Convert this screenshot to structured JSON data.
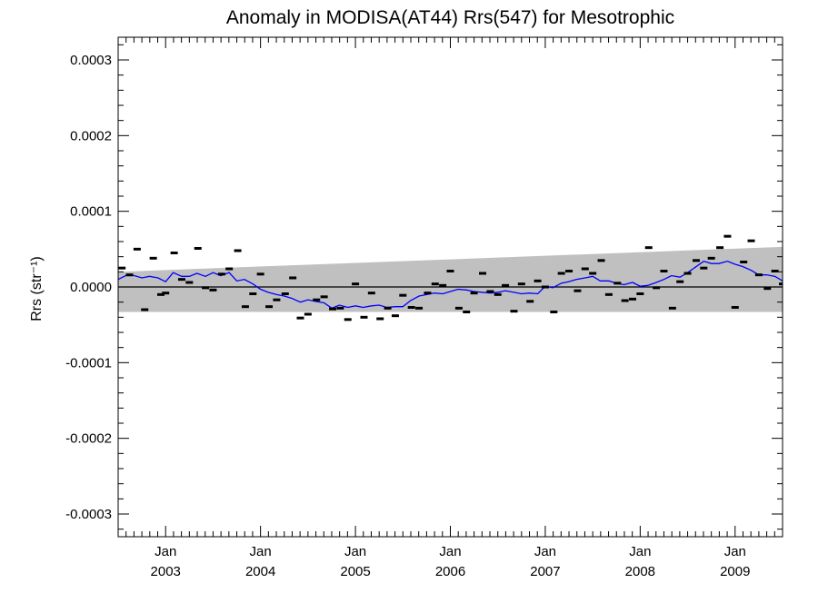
{
  "chart_data": {
    "type": "line",
    "title": "Anomaly in MODISA(AT44) Rrs(547) for Mesotrophic",
    "xlabel": "",
    "ylabel": "Rrs (str⁻¹)",
    "ylim": [
      -0.00033,
      0.00033
    ],
    "xlim": [
      2002.5,
      2009.5
    ],
    "y_ticks": [
      -0.0003,
      -0.0002,
      -0.0001,
      0.0,
      0.0001,
      0.0002,
      0.0003
    ],
    "y_tick_labels": [
      "-0.0003",
      "-0.0002",
      "-0.0001",
      "0.0000",
      "0.0001",
      "0.0002",
      "0.0003"
    ],
    "x_ticks": [
      {
        "x": 2003.0,
        "month": "Jan",
        "year": "2003"
      },
      {
        "x": 2004.0,
        "month": "Jan",
        "year": "2004"
      },
      {
        "x": 2005.0,
        "month": "Jan",
        "year": "2005"
      },
      {
        "x": 2006.0,
        "month": "Jan",
        "year": "2006"
      },
      {
        "x": 2007.0,
        "month": "Jan",
        "year": "2007"
      },
      {
        "x": 2008.0,
        "month": "Jan",
        "year": "2008"
      },
      {
        "x": 2009.0,
        "month": "Jan",
        "year": "2009"
      }
    ],
    "zero_line": 0.0,
    "band": {
      "color": "#c0c0c0",
      "x": [
        2002.5,
        2009.5
      ],
      "upper": [
        2e-05,
        5.3e-05
      ],
      "lower": [
        -3.3e-05,
        -3.3e-05
      ]
    },
    "series": [
      {
        "style": "markers",
        "marker": "dash",
        "color": "#000000",
        "points": [
          [
            2002.54,
            2.5e-05
          ],
          [
            2002.62,
            1.6e-05
          ],
          [
            2002.7,
            5e-05
          ],
          [
            2002.78,
            -3e-05
          ],
          [
            2002.87,
            3.8e-05
          ],
          [
            2002.95,
            -1e-05
          ],
          [
            2003.0,
            -8e-06
          ],
          [
            2003.09,
            4.5e-05
          ],
          [
            2003.17,
            1e-05
          ],
          [
            2003.25,
            6e-06
          ],
          [
            2003.34,
            5.1e-05
          ],
          [
            2003.42,
            -1e-06
          ],
          [
            2003.5,
            -4e-06
          ],
          [
            2003.59,
            1.7e-05
          ],
          [
            2003.67,
            2.4e-05
          ],
          [
            2003.76,
            4.8e-05
          ],
          [
            2003.84,
            -2.6e-05
          ],
          [
            2003.92,
            -9e-06
          ],
          [
            2004.0,
            1.7e-05
          ],
          [
            2004.09,
            -2.6e-05
          ],
          [
            2004.17,
            -1.7e-05
          ],
          [
            2004.26,
            -9e-06
          ],
          [
            2004.34,
            1.2e-05
          ],
          [
            2004.42,
            -4.1e-05
          ],
          [
            2004.5,
            -3.6e-05
          ],
          [
            2004.59,
            -1.7e-05
          ],
          [
            2004.67,
            -1.3e-05
          ],
          [
            2004.76,
            -2.9e-05
          ],
          [
            2004.84,
            -2.8e-05
          ],
          [
            2004.92,
            -4.3e-05
          ],
          [
            2005.0,
            4e-06
          ],
          [
            2005.09,
            -4e-05
          ],
          [
            2005.17,
            -8e-06
          ],
          [
            2005.26,
            -4.2e-05
          ],
          [
            2005.34,
            -2.8e-05
          ],
          [
            2005.42,
            -3.8e-05
          ],
          [
            2005.5,
            -1.1e-05
          ],
          [
            2005.59,
            -2.7e-05
          ],
          [
            2005.67,
            -2.8e-05
          ],
          [
            2005.76,
            -8e-06
          ],
          [
            2005.84,
            4e-06
          ],
          [
            2005.92,
            2e-06
          ],
          [
            2006.0,
            2.1e-05
          ],
          [
            2006.09,
            -2.8e-05
          ],
          [
            2006.17,
            -3.3e-05
          ],
          [
            2006.25,
            -8e-06
          ],
          [
            2006.34,
            1.8e-05
          ],
          [
            2006.42,
            -6e-06
          ],
          [
            2006.5,
            -1e-05
          ],
          [
            2006.58,
            2e-06
          ],
          [
            2006.67,
            -3.2e-05
          ],
          [
            2006.75,
            4e-06
          ],
          [
            2006.84,
            -1.9e-05
          ],
          [
            2006.92,
            8e-06
          ],
          [
            2007.0,
            0.0
          ],
          [
            2007.09,
            -3.3e-05
          ],
          [
            2007.17,
            1.8e-05
          ],
          [
            2007.25,
            2.1e-05
          ],
          [
            2007.34,
            -5e-06
          ],
          [
            2007.42,
            2.4e-05
          ],
          [
            2007.5,
            1.8e-05
          ],
          [
            2007.59,
            3.5e-05
          ],
          [
            2007.67,
            -1e-05
          ],
          [
            2007.76,
            5e-06
          ],
          [
            2007.84,
            -1.8e-05
          ],
          [
            2007.92,
            -1.6e-05
          ],
          [
            2008.0,
            -9e-06
          ],
          [
            2008.09,
            5.2e-05
          ],
          [
            2008.17,
            -1e-06
          ],
          [
            2008.25,
            2.1e-05
          ],
          [
            2008.34,
            -2.8e-05
          ],
          [
            2008.42,
            7e-06
          ],
          [
            2008.5,
            1.8e-05
          ],
          [
            2008.59,
            3.5e-05
          ],
          [
            2008.67,
            2.5e-05
          ],
          [
            2008.75,
            3.8e-05
          ],
          [
            2008.84,
            5.2e-05
          ],
          [
            2008.92,
            6.7e-05
          ],
          [
            2009.0,
            -2.7e-05
          ],
          [
            2009.09,
            3.3e-05
          ],
          [
            2009.17,
            6.1e-05
          ],
          [
            2009.25,
            1.6e-05
          ],
          [
            2009.34,
            -2e-06
          ],
          [
            2009.42,
            2.1e-05
          ],
          [
            2009.5,
            4e-06
          ]
        ]
      },
      {
        "style": "line",
        "color": "#0000ff",
        "points": [
          [
            2002.5,
            1e-05
          ],
          [
            2002.58,
            1.5e-05
          ],
          [
            2002.67,
            1.5e-05
          ],
          [
            2002.75,
            1.2e-05
          ],
          [
            2002.83,
            1.4e-05
          ],
          [
            2002.92,
            1.2e-05
          ],
          [
            2003.0,
            7e-06
          ],
          [
            2003.08,
            1.9e-05
          ],
          [
            2003.17,
            1.4e-05
          ],
          [
            2003.25,
            1.4e-05
          ],
          [
            2003.33,
            1.8e-05
          ],
          [
            2003.42,
            1.4e-05
          ],
          [
            2003.5,
            1.9e-05
          ],
          [
            2003.58,
            1.5e-05
          ],
          [
            2003.67,
            1.9e-05
          ],
          [
            2003.75,
            8e-06
          ],
          [
            2003.83,
            1e-05
          ],
          [
            2003.92,
            4e-06
          ],
          [
            2004.0,
            -3e-06
          ],
          [
            2004.08,
            -7e-06
          ],
          [
            2004.17,
            -1e-05
          ],
          [
            2004.25,
            -1.2e-05
          ],
          [
            2004.33,
            -1.5e-05
          ],
          [
            2004.42,
            -2e-05
          ],
          [
            2004.5,
            -1.7e-05
          ],
          [
            2004.58,
            -1.9e-05
          ],
          [
            2004.67,
            -2.1e-05
          ],
          [
            2004.75,
            -2.8e-05
          ],
          [
            2004.83,
            -2.4e-05
          ],
          [
            2004.92,
            -2.7e-05
          ],
          [
            2005.0,
            -2.5e-05
          ],
          [
            2005.08,
            -2.7e-05
          ],
          [
            2005.17,
            -2.5e-05
          ],
          [
            2005.25,
            -2.4e-05
          ],
          [
            2005.33,
            -2.7e-05
          ],
          [
            2005.42,
            -2.6e-05
          ],
          [
            2005.5,
            -2.6e-05
          ],
          [
            2005.58,
            -1.8e-05
          ],
          [
            2005.67,
            -1.2e-05
          ],
          [
            2005.75,
            -1e-05
          ],
          [
            2005.83,
            -8e-06
          ],
          [
            2005.92,
            -9e-06
          ],
          [
            2006.0,
            -6e-06
          ],
          [
            2006.08,
            -3e-06
          ],
          [
            2006.17,
            -4e-06
          ],
          [
            2006.25,
            -6e-06
          ],
          [
            2006.33,
            -7e-06
          ],
          [
            2006.42,
            -8e-06
          ],
          [
            2006.5,
            -7e-06
          ],
          [
            2006.58,
            -5e-06
          ],
          [
            2006.67,
            -7e-06
          ],
          [
            2006.75,
            -9e-06
          ],
          [
            2006.83,
            -8e-06
          ],
          [
            2006.92,
            -9e-06
          ],
          [
            2007.0,
            1e-06
          ],
          [
            2007.08,
            -1e-06
          ],
          [
            2007.17,
            5e-06
          ],
          [
            2007.25,
            7e-06
          ],
          [
            2007.33,
            1e-05
          ],
          [
            2007.42,
            1.2e-05
          ],
          [
            2007.5,
            1.4e-05
          ],
          [
            2007.58,
            8e-06
          ],
          [
            2007.67,
            8e-06
          ],
          [
            2007.75,
            5e-06
          ],
          [
            2007.83,
            3e-06
          ],
          [
            2007.92,
            6e-06
          ],
          [
            2008.0,
            1e-06
          ],
          [
            2008.08,
            2e-06
          ],
          [
            2008.17,
            6e-06
          ],
          [
            2008.25,
            1e-05
          ],
          [
            2008.33,
            1.5e-05
          ],
          [
            2008.42,
            1.3e-05
          ],
          [
            2008.5,
            1.9e-05
          ],
          [
            2008.58,
            2.6e-05
          ],
          [
            2008.67,
            3.4e-05
          ],
          [
            2008.75,
            3.1e-05
          ],
          [
            2008.83,
            3.1e-05
          ],
          [
            2008.92,
            3.4e-05
          ],
          [
            2009.0,
            3e-05
          ],
          [
            2009.08,
            2.7e-05
          ],
          [
            2009.17,
            2.2e-05
          ],
          [
            2009.25,
            1.6e-05
          ],
          [
            2009.33,
            1.6e-05
          ],
          [
            2009.42,
            1.4e-05
          ],
          [
            2009.5,
            8e-06
          ]
        ]
      }
    ],
    "grid": false,
    "legend": "none"
  }
}
